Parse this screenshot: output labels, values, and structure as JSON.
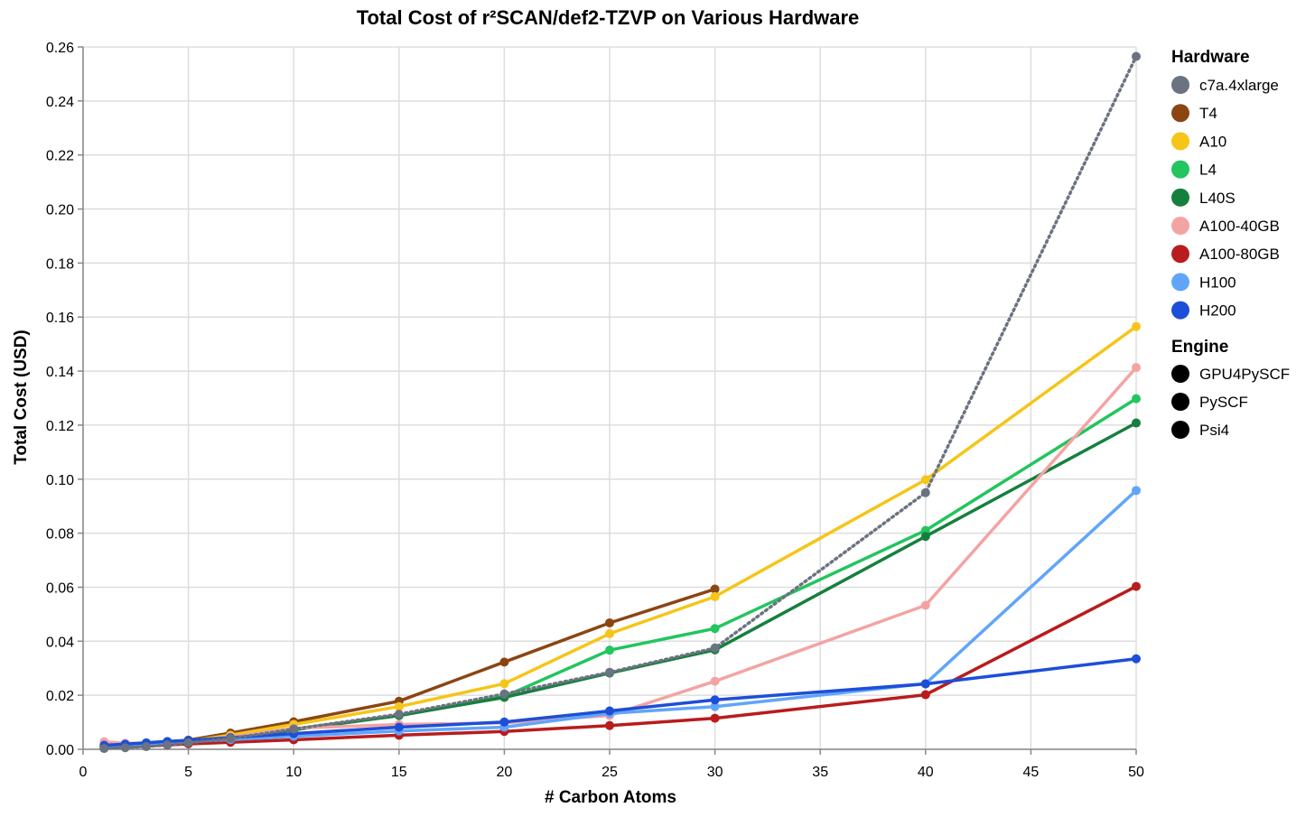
{
  "chart_data": {
    "type": "line",
    "title": "Total Cost of r²SCAN/def2-TZVP on Various Hardware",
    "xlabel": "# Carbon Atoms",
    "ylabel": "Total Cost (USD)",
    "xlim": [
      0,
      50
    ],
    "ylim": [
      0,
      0.26
    ],
    "x_ticks": [
      0,
      5,
      10,
      15,
      20,
      25,
      30,
      35,
      40,
      45,
      50
    ],
    "y_ticks": [
      0,
      0.02,
      0.04,
      0.06,
      0.08,
      0.1,
      0.12,
      0.14,
      0.16,
      0.18,
      0.2,
      0.22,
      0.24,
      0.26
    ],
    "y_tick_labels": [
      "0.00",
      "0.02",
      "0.04",
      "0.06",
      "0.08",
      "0.10",
      "0.12",
      "0.14",
      "0.16",
      "0.18",
      "0.20",
      "0.22",
      "0.24",
      "0.26"
    ],
    "grid": true,
    "legend_position": "right",
    "legend": {
      "hardware_title": "Hardware",
      "engine_title": "Engine",
      "engines": [
        "GPU4PySCF",
        "PySCF",
        "Psi4"
      ]
    },
    "series": [
      {
        "name": "c7a.4xlarge",
        "color": "#6b7280",
        "dash": "dotted",
        "engine": "PySCF",
        "points": [
          [
            1,
            0.0003
          ],
          [
            2,
            0.0006
          ],
          [
            3,
            0.001
          ],
          [
            4,
            0.0016
          ],
          [
            5,
            0.0024
          ],
          [
            7,
            0.004
          ],
          [
            10,
            0.0075
          ],
          [
            15,
            0.013
          ],
          [
            20,
            0.0205
          ],
          [
            25,
            0.0285
          ],
          [
            30,
            0.0375
          ],
          [
            40,
            0.095
          ],
          [
            50,
            0.2565
          ]
        ]
      },
      {
        "name": "T4",
        "color": "#8b4513",
        "dash": "solid",
        "engine": "GPU4PySCF",
        "points": [
          [
            1,
            0.0008
          ],
          [
            2,
            0.0012
          ],
          [
            3,
            0.0018
          ],
          [
            4,
            0.0025
          ],
          [
            5,
            0.0034
          ],
          [
            7,
            0.006
          ],
          [
            10,
            0.0102
          ],
          [
            15,
            0.0178
          ],
          [
            20,
            0.0323
          ],
          [
            25,
            0.0468
          ],
          [
            30,
            0.0593
          ]
        ]
      },
      {
        "name": "A10",
        "color": "#f5c518",
        "dash": "solid",
        "engine": "GPU4PySCF",
        "points": [
          [
            1,
            0.0007
          ],
          [
            2,
            0.001
          ],
          [
            3,
            0.0015
          ],
          [
            4,
            0.0021
          ],
          [
            5,
            0.003
          ],
          [
            7,
            0.0052
          ],
          [
            10,
            0.0092
          ],
          [
            15,
            0.0158
          ],
          [
            20,
            0.0243
          ],
          [
            25,
            0.0428
          ],
          [
            30,
            0.0565
          ],
          [
            40,
            0.0998
          ],
          [
            50,
            0.1565
          ]
        ]
      },
      {
        "name": "L4",
        "color": "#22c55e",
        "dash": "solid",
        "engine": "GPU4PySCF",
        "points": [
          [
            1,
            0.0005
          ],
          [
            2,
            0.0008
          ],
          [
            3,
            0.0012
          ],
          [
            4,
            0.0017
          ],
          [
            5,
            0.0024
          ],
          [
            7,
            0.0042
          ],
          [
            10,
            0.0075
          ],
          [
            15,
            0.0125
          ],
          [
            20,
            0.0195
          ],
          [
            25,
            0.0367
          ],
          [
            30,
            0.0447
          ],
          [
            40,
            0.081
          ],
          [
            50,
            0.1298
          ]
        ]
      },
      {
        "name": "L40S",
        "color": "#15803d",
        "dash": "solid",
        "engine": "GPU4PySCF",
        "points": [
          [
            1,
            0.0006
          ],
          [
            2,
            0.0009
          ],
          [
            3,
            0.0013
          ],
          [
            4,
            0.0018
          ],
          [
            5,
            0.0025
          ],
          [
            7,
            0.0043
          ],
          [
            10,
            0.0072
          ],
          [
            15,
            0.0125
          ],
          [
            20,
            0.0192
          ],
          [
            25,
            0.0282
          ],
          [
            30,
            0.0368
          ],
          [
            40,
            0.0788
          ],
          [
            50,
            0.1208
          ]
        ]
      },
      {
        "name": "A100-40GB",
        "color": "#f4a3a3",
        "dash": "solid",
        "engine": "GPU4PySCF",
        "points": [
          [
            1,
            0.0028
          ],
          [
            2,
            0.0022
          ],
          [
            3,
            0.0022
          ],
          [
            4,
            0.0025
          ],
          [
            5,
            0.003
          ],
          [
            7,
            0.0045
          ],
          [
            10,
            0.0078
          ],
          [
            15,
            0.0092
          ],
          [
            20,
            0.0098
          ],
          [
            25,
            0.0125
          ],
          [
            30,
            0.0252
          ],
          [
            40,
            0.0533
          ],
          [
            50,
            0.1413
          ]
        ]
      },
      {
        "name": "A100-80GB",
        "color": "#b91c1c",
        "dash": "solid",
        "engine": "GPU4PySCF",
        "points": [
          [
            1,
            0.0008
          ],
          [
            2,
            0.001
          ],
          [
            3,
            0.0013
          ],
          [
            4,
            0.0016
          ],
          [
            5,
            0.002
          ],
          [
            7,
            0.0026
          ],
          [
            10,
            0.0035
          ],
          [
            15,
            0.0052
          ],
          [
            20,
            0.0066
          ],
          [
            25,
            0.0088
          ],
          [
            30,
            0.0115
          ],
          [
            40,
            0.0202
          ],
          [
            50,
            0.0603
          ]
        ]
      },
      {
        "name": "H100",
        "color": "#60a5fa",
        "dash": "solid",
        "engine": "GPU4PySCF",
        "points": [
          [
            1,
            0.0012
          ],
          [
            2,
            0.0015
          ],
          [
            3,
            0.0019
          ],
          [
            4,
            0.0024
          ],
          [
            5,
            0.0029
          ],
          [
            7,
            0.0036
          ],
          [
            10,
            0.0048
          ],
          [
            15,
            0.0068
          ],
          [
            20,
            0.0082
          ],
          [
            25,
            0.0133
          ],
          [
            30,
            0.0158
          ],
          [
            40,
            0.0243
          ],
          [
            50,
            0.0958
          ]
        ]
      },
      {
        "name": "H200",
        "color": "#1d4ed8",
        "dash": "solid",
        "engine": "GPU4PySCF",
        "points": [
          [
            1,
            0.0015
          ],
          [
            2,
            0.0019
          ],
          [
            3,
            0.0024
          ],
          [
            4,
            0.0029
          ],
          [
            5,
            0.0033
          ],
          [
            7,
            0.0043
          ],
          [
            10,
            0.0058
          ],
          [
            15,
            0.0082
          ],
          [
            20,
            0.0101
          ],
          [
            25,
            0.0142
          ],
          [
            30,
            0.0183
          ],
          [
            40,
            0.0242
          ],
          [
            50,
            0.0335
          ]
        ]
      }
    ]
  }
}
